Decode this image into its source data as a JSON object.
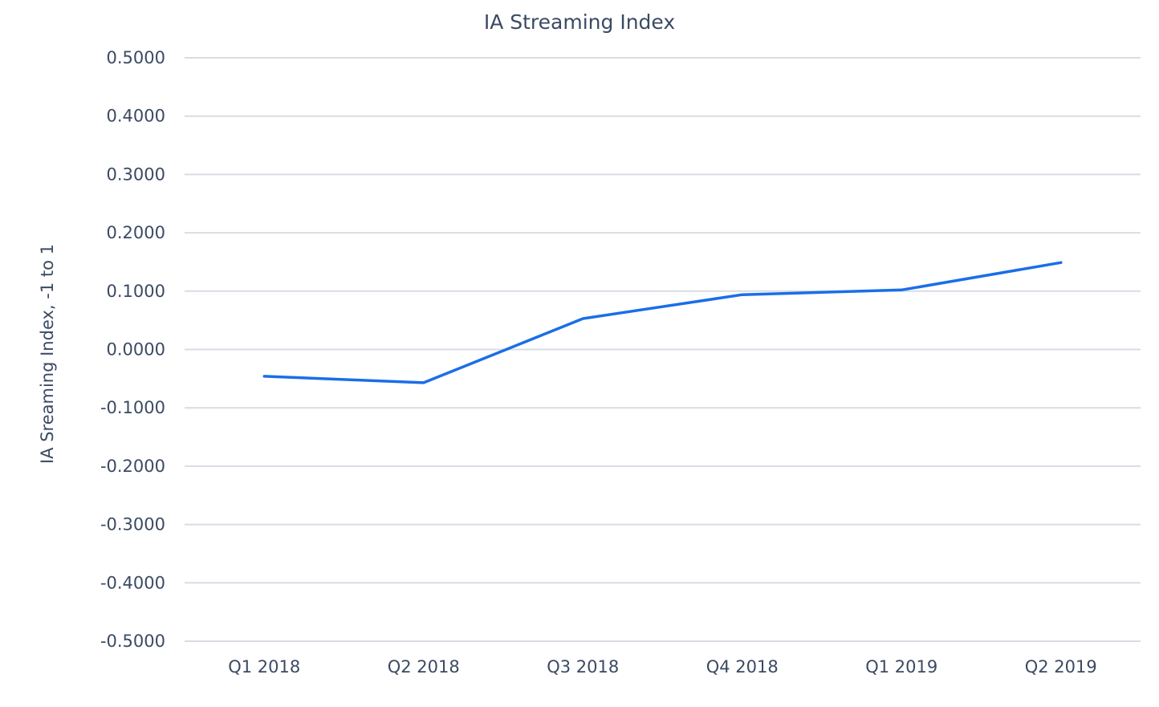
{
  "chart_data": {
    "type": "line",
    "title": "IA Streaming Index",
    "xlabel": "",
    "ylabel": "IA Sreaming Index, -1 to 1",
    "categories": [
      "Q1 2018",
      "Q2 2018",
      "Q3 2018",
      "Q4 2018",
      "Q1 2019",
      "Q2 2019"
    ],
    "series": [
      {
        "values": [
          -0.046,
          -0.057,
          0.053,
          0.094,
          0.102,
          0.149
        ],
        "color": "#1a6ee8"
      }
    ],
    "ylim": [
      -0.5,
      0.5
    ],
    "yticks": [
      "0.5000",
      "0.4000",
      "0.3000",
      "0.2000",
      "0.1000",
      "0.0000",
      "-0.1000",
      "-0.2000",
      "-0.3000",
      "-0.4000",
      "-0.5000"
    ],
    "grid": true,
    "legend": "none"
  }
}
